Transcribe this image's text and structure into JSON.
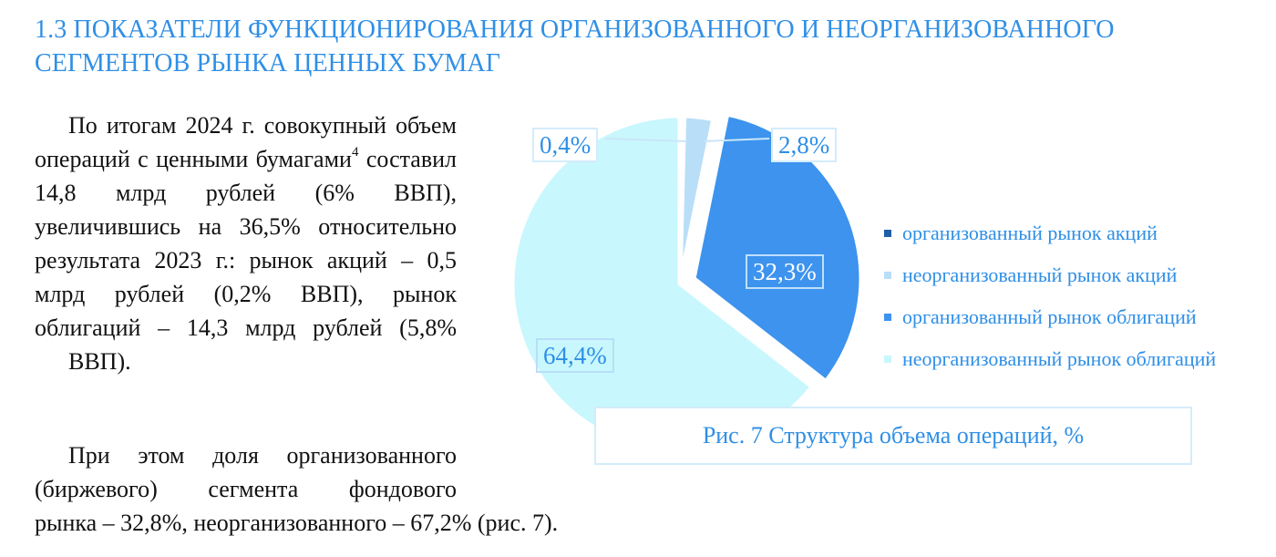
{
  "heading": {
    "line1": "1.3 ПОКАЗАТЕЛИ ФУНКЦИОНИРОВАНИЯ ОРГАНИЗОВАННОГО И НЕОРГАНИЗОВАННОГО",
    "line2": "СЕГМЕНТОВ РЫНКА ЦЕННЫХ БУМАГ"
  },
  "paragraph1": {
    "before_footnote": "По итогам 2024 г. совокупный объем операций с ценными бумагами",
    "footnote": "4",
    "after_footnote": " составил 14,8 млрд рублей (6% ВВП), увеличившись на 36,5% относительно результата 2023 г.: рынок акций – 0,5 млрд рублей (0,2% ВВП), рынок облигаций – 14,3 млрд рублей (5,8%",
    "last_line": "ВВП)."
  },
  "paragraph2": {
    "block": "При этом доля организованного (биржевого) сегмента фондового",
    "tail": "рынка – 32,8%, неорганизованного – 67,2% (рис. 7)."
  },
  "figure": {
    "caption": "Рис. 7 Структура объема операций, %"
  },
  "colors": {
    "heading": "#2f8fe6",
    "org_shares": "#1f5fa6",
    "unorg_shares": "#b9def8",
    "org_bonds": "#3d93ee",
    "unorg_bonds": "#c8f7fd"
  },
  "chart_data": {
    "type": "pie",
    "title": "Рис. 7 Структура объема операций, %",
    "slices": [
      {
        "name": "организованный рынок акций",
        "label": "0,4%",
        "value": 0.4,
        "color": "#1f5fa6",
        "exploded": false
      },
      {
        "name": "неорганизованный рынок акций",
        "label": "2,8%",
        "value": 2.8,
        "color": "#b9def8",
        "exploded": false
      },
      {
        "name": "организованный рынок облигаций",
        "label": "32,3%",
        "value": 32.3,
        "color": "#3d93ee",
        "exploded": true
      },
      {
        "name": "неорганизованный рынок облигаций",
        "label": "64,4%",
        "value": 64.4,
        "color": "#c8f7fd",
        "exploded": false
      }
    ],
    "legend_position": "right"
  }
}
